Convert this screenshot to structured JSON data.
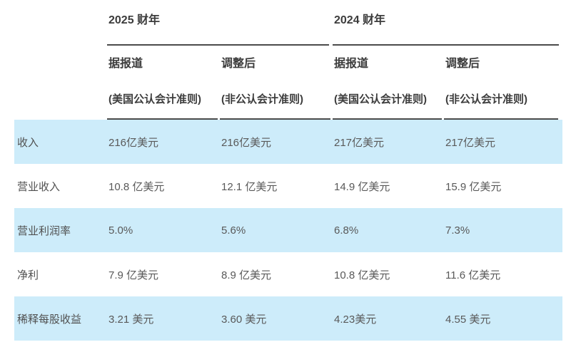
{
  "table": {
    "year_groups": [
      {
        "label": "2025 财年"
      },
      {
        "label": "2024 财年"
      }
    ],
    "sub_headers": [
      {
        "line1": "据报道",
        "line2": "(美国公认会计准则)"
      },
      {
        "line1": "调整后",
        "line2": "(非公认会计准则)"
      },
      {
        "line1": "据报道",
        "line2": "(美国公认会计准则)"
      },
      {
        "line1": "调整后",
        "line2": "(非公认会计准则)"
      }
    ],
    "rows": [
      {
        "label": "收入",
        "values": [
          "216亿美元",
          "216亿美元",
          "217亿美元",
          "217亿美元"
        ]
      },
      {
        "label": "营业收入",
        "values": [
          "10.8 亿美元",
          "12.1 亿美元",
          "14.9 亿美元",
          "15.9 亿美元"
        ]
      },
      {
        "label": "营业利润率",
        "values": [
          "5.0%",
          "5.6%",
          "6.8%",
          "7.3%"
        ]
      },
      {
        "label": "净利",
        "values": [
          "7.9 亿美元",
          "8.9 亿美元",
          "10.8 亿美元",
          "11.6 亿美元"
        ]
      },
      {
        "label": "稀释每股收益",
        "values": [
          "3.21 美元",
          "3.60 美元",
          "4.23美元",
          "4.55 美元"
        ]
      }
    ],
    "colors": {
      "stripe": "#cdecfa",
      "rule": "#4b4b4b",
      "header_text": "#3c3c3c",
      "body_text": "#595959"
    }
  },
  "chart_data": {
    "type": "table",
    "title": "",
    "categories": [
      "收入",
      "营业收入",
      "营业利润率",
      "净利",
      "稀释每股收益"
    ],
    "series": [
      {
        "name": "2025 财年 据报道 (美国公认会计准则)",
        "values": [
          "216亿美元",
          "10.8 亿美元",
          "5.0%",
          "7.9 亿美元",
          "3.21 美元"
        ]
      },
      {
        "name": "2025 财年 调整后 (非公认会计准则)",
        "values": [
          "216亿美元",
          "12.1 亿美元",
          "5.6%",
          "8.9 亿美元",
          "3.60 美元"
        ]
      },
      {
        "name": "2024 财年 据报道 (美国公认会计准则)",
        "values": [
          "217亿美元",
          "14.9 亿美元",
          "6.8%",
          "10.8 亿美元",
          "4.23美元"
        ]
      },
      {
        "name": "2024 财年 调整后 (非公认会计准则)",
        "values": [
          "217亿美元",
          "15.9 亿美元",
          "7.3%",
          "11.6 亿美元",
          "4.55 美元"
        ]
      }
    ],
    "layout": {
      "striped_rows": [
        0,
        2,
        4
      ],
      "stripe_color": "#cdecfa",
      "grid": "header rules only"
    }
  }
}
